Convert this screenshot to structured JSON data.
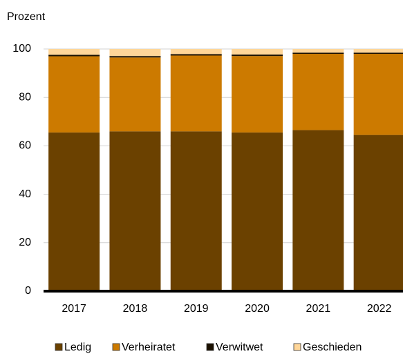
{
  "chart_data": {
    "type": "stacked_bar",
    "y_axis_label": "Prozent",
    "categories": [
      "2017",
      "2018",
      "2019",
      "2020",
      "2021",
      "2022"
    ],
    "series": [
      {
        "name": "Ledig",
        "color": "#6b4100",
        "values": [
          65.5,
          66,
          66,
          65.5,
          66.5,
          64.5
        ]
      },
      {
        "name": "Verheiratet",
        "color": "#cc7a00",
        "values": [
          31.5,
          30.5,
          31.3,
          31.6,
          31.5,
          33.5
        ]
      },
      {
        "name": "Verwitwet",
        "color": "#1a1000",
        "values": [
          0.6,
          0.6,
          0.6,
          0.6,
          0.5,
          0.5
        ]
      },
      {
        "name": "Geschieden",
        "color": "#ffd699",
        "values": [
          2.4,
          2.9,
          2.1,
          2.3,
          1.5,
          1.5
        ]
      }
    ],
    "ylim": [
      0,
      100
    ],
    "yticks": [
      0,
      20,
      40,
      60,
      80,
      100
    ],
    "grid": true,
    "legend": "bottom"
  }
}
